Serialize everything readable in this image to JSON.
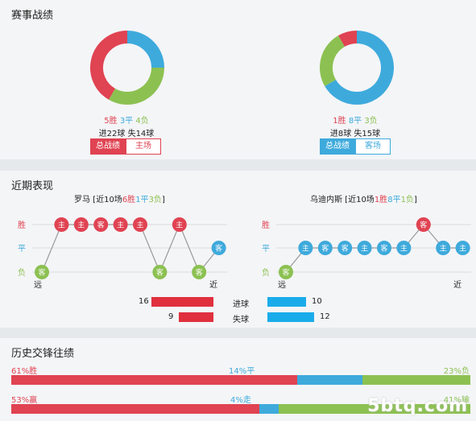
{
  "section1": {
    "title": "赛事战绩",
    "left": {
      "win": "5胜",
      "draw": "3平",
      "loss": "4负",
      "goals": "进22球  失14球",
      "btn_total": "总战绩",
      "btn_venue": "主场",
      "donut": {
        "win": 5,
        "draw": 3,
        "loss": 4
      }
    },
    "right": {
      "win": "1胜",
      "draw": "8平",
      "loss": "3负",
      "goals": "进8球  失15球",
      "btn_total": "总战绩",
      "btn_venue": "客场",
      "donut": {
        "win": 1,
        "draw": 8,
        "loss": 3
      }
    }
  },
  "section2": {
    "title": "近期表现",
    "left": {
      "name": "罗马",
      "prefix": " [近10场",
      "win": "6胜",
      "draw": "1平",
      "loss": "3负",
      "suffix": "]",
      "results": [
        "负",
        "胜",
        "胜",
        "胜",
        "胜",
        "胜",
        "负",
        "胜",
        "负",
        "平"
      ],
      "venues": [
        "客",
        "主",
        "主",
        "客",
        "主",
        "主",
        "客",
        "主",
        "客",
        "客"
      ]
    },
    "right": {
      "name": "乌迪内斯",
      "prefix": " [近10场",
      "win": "1胜",
      "draw": "8平",
      "loss": "1负",
      "suffix": "]",
      "results": [
        "负",
        "平",
        "平",
        "平",
        "平",
        "平",
        "平",
        "胜",
        "平",
        "平"
      ],
      "venues": [
        "客",
        "主",
        "客",
        "客",
        "主",
        "客",
        "主",
        "客",
        "主",
        "主"
      ]
    },
    "y_labels": [
      "胜",
      "平",
      "负"
    ],
    "far": "远",
    "near": "近",
    "goals_for": {
      "label": "进球",
      "left": 16,
      "right": 10
    },
    "goals_against": {
      "label": "失球",
      "left": 9,
      "right": 12
    }
  },
  "section3": {
    "title": "历史交锋往绩",
    "row1": {
      "left": "61%胜",
      "mid": "14%平",
      "right": "23%负",
      "values": [
        61,
        14,
        23
      ]
    },
    "row2": {
      "left": "53%赢",
      "mid": "4%走",
      "right": "41%输",
      "values": [
        53,
        4,
        41
      ]
    }
  },
  "colors": {
    "win": "#e04352",
    "draw": "#3eaadc",
    "loss": "#8cc152"
  },
  "watermark": "5btq.com"
}
